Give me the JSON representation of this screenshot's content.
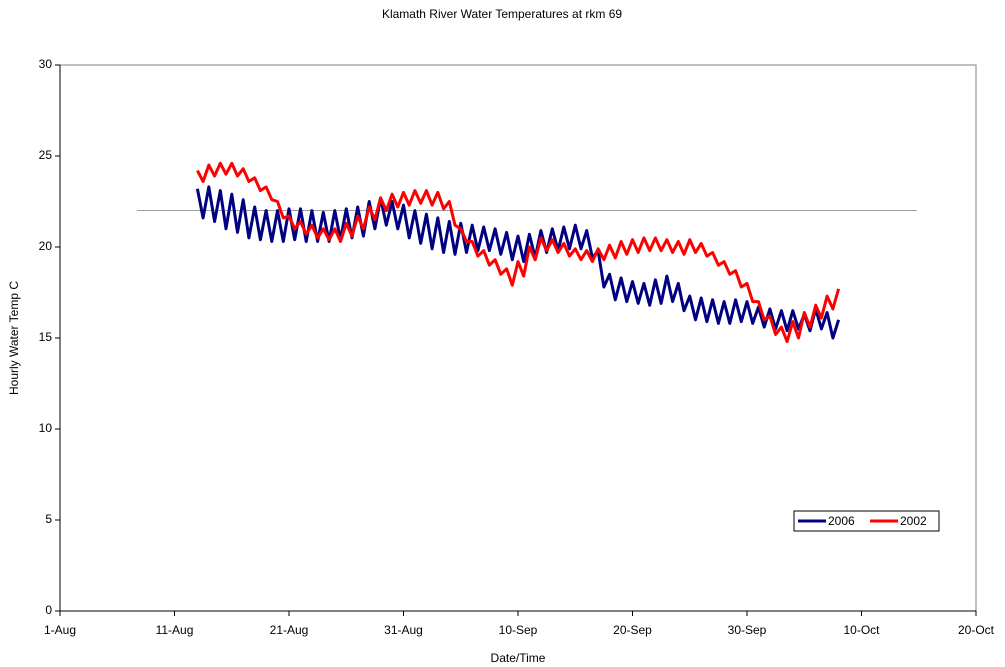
{
  "chart_data": {
    "type": "line",
    "title": "Klamath River Water Temperatures at rkm 69",
    "x_label": "Date/Time",
    "y_label": "Hourly Water Temp C",
    "xlim": [
      0,
      80
    ],
    "xticks": [
      {
        "value": 0,
        "label": "1-Aug"
      },
      {
        "value": 10,
        "label": "11-Aug"
      },
      {
        "value": 20,
        "label": "21-Aug"
      },
      {
        "value": 30,
        "label": "31-Aug"
      },
      {
        "value": 40,
        "label": "10-Sep"
      },
      {
        "value": 50,
        "label": "20-Sep"
      },
      {
        "value": 60,
        "label": "30-Sep"
      },
      {
        "value": 70,
        "label": "10-Oct"
      },
      {
        "value": 80,
        "label": "20-Oct"
      }
    ],
    "ylim": [
      0,
      30
    ],
    "yticks": [
      0,
      5,
      10,
      15,
      20,
      25,
      30
    ],
    "reference_line": 22,
    "legend": "lower right",
    "x": [
      12,
      12.5,
      13,
      13.5,
      14,
      14.5,
      15,
      15.5,
      16,
      16.5,
      17,
      17.5,
      18,
      18.5,
      19,
      19.5,
      20,
      20.5,
      21,
      21.5,
      22,
      22.5,
      23,
      23.5,
      24,
      24.5,
      25,
      25.5,
      26,
      26.5,
      27,
      27.5,
      28,
      28.5,
      29,
      29.5,
      30,
      30.5,
      31,
      31.5,
      32,
      32.5,
      33,
      33.5,
      34,
      34.5,
      35,
      35.5,
      36,
      36.5,
      37,
      37.5,
      38,
      38.5,
      39,
      39.5,
      40,
      40.5,
      41,
      41.5,
      42,
      42.5,
      43,
      43.5,
      44,
      44.5,
      45,
      45.5,
      46,
      46.5,
      47,
      47.5,
      48,
      48.5,
      49,
      49.5,
      50,
      50.5,
      51,
      51.5,
      52,
      52.5,
      53,
      53.5,
      54,
      54.5,
      55,
      55.5,
      56,
      56.5,
      57,
      57.5,
      58,
      58.5,
      59,
      59.5,
      60,
      60.5,
      61,
      61.5,
      62,
      62.5,
      63,
      63.5,
      64,
      64.5,
      65,
      65.5,
      66,
      66.5,
      67,
      67.5,
      68
    ],
    "series": [
      {
        "name": "2006",
        "color": "#000080",
        "values": [
          23.2,
          21.6,
          23.3,
          21.4,
          23.1,
          21.0,
          22.9,
          20.8,
          22.6,
          20.5,
          22.2,
          20.4,
          22.0,
          20.3,
          22.0,
          20.3,
          22.1,
          20.4,
          22.1,
          20.3,
          22.0,
          20.3,
          21.9,
          20.3,
          22.0,
          20.4,
          22.1,
          20.5,
          22.2,
          20.6,
          22.5,
          21.0,
          22.7,
          21.2,
          22.5,
          21.0,
          22.3,
          20.5,
          22.0,
          20.2,
          21.8,
          19.9,
          21.6,
          19.7,
          21.4,
          19.6,
          21.3,
          19.7,
          21.2,
          19.8,
          21.1,
          19.8,
          21.0,
          19.6,
          20.8,
          19.3,
          20.6,
          19.2,
          20.7,
          19.4,
          20.9,
          19.7,
          21.0,
          19.8,
          21.1,
          19.9,
          21.2,
          19.9,
          20.9,
          19.4,
          19.8,
          17.8,
          18.5,
          17.1,
          18.3,
          17.0,
          18.1,
          16.9,
          18.0,
          16.8,
          18.2,
          16.9,
          18.4,
          17.0,
          18.0,
          16.5,
          17.3,
          16.0,
          17.2,
          15.9,
          17.1,
          15.8,
          17.0,
          15.8,
          17.1,
          15.9,
          17.0,
          15.8,
          16.7,
          15.6,
          16.6,
          15.5,
          16.5,
          15.4,
          16.5,
          15.5,
          16.3,
          15.4,
          16.6,
          15.5,
          16.4,
          15.0,
          16.0
        ]
      },
      {
        "name": "2002",
        "color": "#ff0000",
        "values": [
          24.2,
          23.6,
          24.5,
          23.9,
          24.6,
          24.0,
          24.6,
          23.9,
          24.3,
          23.6,
          23.8,
          23.1,
          23.3,
          22.6,
          22.5,
          21.6,
          21.7,
          21.0,
          21.4,
          20.7,
          21.2,
          20.5,
          21.0,
          20.4,
          21.0,
          20.3,
          21.3,
          20.6,
          21.7,
          21.0,
          22.2,
          21.5,
          22.7,
          22.0,
          22.9,
          22.2,
          23.0,
          22.3,
          23.1,
          22.4,
          23.1,
          22.3,
          23.0,
          22.1,
          22.5,
          21.2,
          21.0,
          20.3,
          20.3,
          19.5,
          19.8,
          19.0,
          19.3,
          18.5,
          18.8,
          17.9,
          19.2,
          18.4,
          20.0,
          19.3,
          20.5,
          19.8,
          20.4,
          19.7,
          20.2,
          19.5,
          19.9,
          19.3,
          19.8,
          19.2,
          19.9,
          19.3,
          20.1,
          19.4,
          20.3,
          19.6,
          20.4,
          19.7,
          20.5,
          19.8,
          20.5,
          19.8,
          20.4,
          19.7,
          20.3,
          19.6,
          20.4,
          19.7,
          20.2,
          19.5,
          19.7,
          19.0,
          19.2,
          18.5,
          18.7,
          17.8,
          18.0,
          17.0,
          17.0,
          16.0,
          16.2,
          15.2,
          15.6,
          14.8,
          15.9,
          15.0,
          16.4,
          15.6,
          16.8,
          16.1,
          17.3,
          16.6,
          17.7
        ]
      }
    ]
  }
}
